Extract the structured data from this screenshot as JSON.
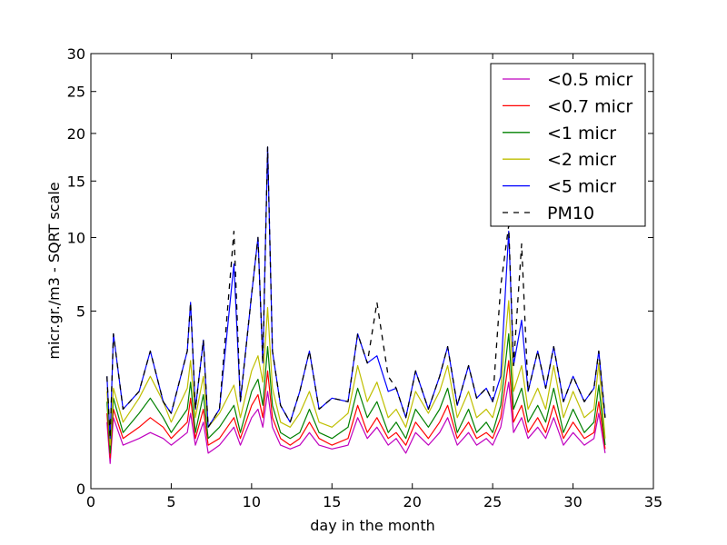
{
  "chart_data": {
    "type": "line",
    "title": "",
    "xlabel": "day in the month",
    "ylabel": "micr.gr./m3 - SQRT scale",
    "xlim": [
      0,
      35
    ],
    "ylim": [
      0,
      30
    ],
    "y_scale": "sqrt",
    "x_ticks": [
      0,
      5,
      10,
      15,
      20,
      25,
      30,
      35
    ],
    "y_ticks": [
      0,
      5,
      10,
      15,
      20,
      25,
      30
    ],
    "grid": false,
    "legend": {
      "position": "top-right"
    },
    "series": [
      {
        "name": "<0.5 micr",
        "color": "#bf00bf",
        "style": "solid",
        "x": [
          1,
          1.2,
          1.4,
          2,
          3,
          3.7,
          4.5,
          5,
          6,
          6.2,
          6.5,
          7,
          7.3,
          8,
          8.9,
          9.3,
          10,
          10.4,
          10.7,
          11,
          11.3,
          11.8,
          12.4,
          13,
          13.6,
          14.2,
          15,
          16,
          16.6,
          17.2,
          17.8,
          18.5,
          19,
          19.6,
          20.2,
          21,
          21.7,
          22.2,
          22.8,
          23.5,
          24,
          24.6,
          25,
          25.5,
          26,
          26.3,
          26.8,
          27.2,
          27.8,
          28.3,
          28.8,
          29.4,
          30,
          30.7,
          31.3,
          31.6,
          32
        ],
        "y": [
          0.7,
          0.1,
          0.8,
          0.3,
          0.4,
          0.5,
          0.4,
          0.3,
          0.5,
          0.9,
          0.3,
          0.7,
          0.2,
          0.3,
          0.6,
          0.3,
          0.8,
          1.0,
          0.6,
          1.5,
          0.6,
          0.3,
          0.25,
          0.3,
          0.5,
          0.3,
          0.25,
          0.3,
          0.8,
          0.4,
          0.6,
          0.3,
          0.4,
          0.2,
          0.5,
          0.3,
          0.5,
          0.8,
          0.3,
          0.5,
          0.3,
          0.4,
          0.3,
          0.6,
          1.8,
          0.5,
          0.8,
          0.4,
          0.6,
          0.4,
          0.8,
          0.3,
          0.5,
          0.3,
          0.4,
          0.9,
          0.2
        ]
      },
      {
        "name": "<0.7 micr",
        "color": "#ff0000",
        "style": "solid",
        "x": [
          1,
          1.2,
          1.4,
          2,
          3,
          3.7,
          4.5,
          5,
          6,
          6.2,
          6.5,
          7,
          7.3,
          8,
          8.9,
          9.3,
          10,
          10.4,
          10.7,
          11,
          11.3,
          11.8,
          12.4,
          13,
          13.6,
          14.2,
          15,
          16,
          16.6,
          17.2,
          17.8,
          18.5,
          19,
          19.6,
          20.2,
          21,
          21.7,
          22.2,
          22.8,
          23.5,
          24,
          24.6,
          25,
          25.5,
          26,
          26.3,
          26.8,
          27.2,
          27.8,
          28.3,
          28.8,
          29.4,
          30,
          30.7,
          31.3,
          31.6,
          32
        ],
        "y": [
          0.9,
          0.15,
          1.0,
          0.4,
          0.6,
          0.8,
          0.6,
          0.4,
          0.7,
          1.3,
          0.4,
          1.0,
          0.3,
          0.4,
          0.8,
          0.4,
          1.1,
          1.4,
          0.8,
          2.2,
          0.8,
          0.4,
          0.3,
          0.4,
          0.7,
          0.4,
          0.3,
          0.4,
          1.1,
          0.5,
          0.8,
          0.4,
          0.5,
          0.3,
          0.7,
          0.4,
          0.7,
          1.1,
          0.4,
          0.7,
          0.4,
          0.5,
          0.4,
          0.8,
          2.6,
          0.7,
          1.1,
          0.5,
          0.8,
          0.5,
          1.1,
          0.4,
          0.7,
          0.4,
          0.5,
          1.2,
          0.25
        ]
      },
      {
        "name": "<1 micr",
        "color": "#008000",
        "style": "solid",
        "x": [
          1,
          1.2,
          1.4,
          2,
          3,
          3.7,
          4.5,
          5,
          6,
          6.2,
          6.5,
          7,
          7.3,
          8,
          8.9,
          9.3,
          10,
          10.4,
          10.7,
          11,
          11.3,
          11.8,
          12.4,
          13,
          13.6,
          14.2,
          15,
          16,
          16.6,
          17.2,
          17.8,
          18.5,
          19,
          19.6,
          20.2,
          21,
          21.7,
          22.2,
          22.8,
          23.5,
          24,
          24.6,
          25,
          25.5,
          26,
          26.3,
          26.8,
          27.2,
          27.8,
          28.3,
          28.8,
          29.4,
          30,
          30.7,
          31.3,
          31.6,
          32
        ],
        "y": [
          1.2,
          0.2,
          1.3,
          0.5,
          0.9,
          1.3,
          0.8,
          0.5,
          1.0,
          1.8,
          0.5,
          1.4,
          0.4,
          0.6,
          1.1,
          0.5,
          1.5,
          1.9,
          1.1,
          3.2,
          1.1,
          0.5,
          0.4,
          0.5,
          1.0,
          0.5,
          0.4,
          0.6,
          1.6,
          0.8,
          1.2,
          0.5,
          0.7,
          0.4,
          1.0,
          0.6,
          1.0,
          1.6,
          0.5,
          1.0,
          0.5,
          0.7,
          0.5,
          1.1,
          3.8,
          1.0,
          1.6,
          0.7,
          1.1,
          0.7,
          1.6,
          0.5,
          1.0,
          0.5,
          0.7,
          1.7,
          0.3
        ]
      },
      {
        "name": "<2 micr",
        "color": "#bfbf00",
        "style": "solid",
        "x": [
          1,
          1.2,
          1.4,
          2,
          3,
          3.7,
          4.5,
          5,
          6,
          6.2,
          6.5,
          7,
          7.3,
          8,
          8.9,
          9.3,
          10,
          10.4,
          10.7,
          11,
          11.3,
          11.8,
          12.4,
          13,
          13.6,
          14.2,
          15,
          16,
          16.6,
          17.2,
          17.8,
          18.5,
          19,
          19.6,
          20.2,
          21,
          21.7,
          22.2,
          22.8,
          23.5,
          24,
          24.6,
          25,
          25.5,
          26,
          26.3,
          26.8,
          27.2,
          27.8,
          28.3,
          28.8,
          29.4,
          30,
          30.7,
          31.3,
          31.6,
          32
        ],
        "y": [
          1.5,
          0.3,
          1.6,
          0.7,
          1.3,
          2.0,
          1.2,
          0.7,
          1.6,
          2.6,
          0.8,
          2.0,
          0.6,
          0.9,
          1.7,
          0.8,
          2.2,
          2.8,
          1.8,
          5.2,
          1.6,
          0.7,
          0.6,
          0.9,
          1.5,
          0.7,
          0.6,
          0.9,
          2.4,
          1.2,
          1.8,
          0.8,
          1.0,
          0.6,
          1.5,
          0.9,
          1.5,
          2.4,
          0.8,
          1.5,
          0.8,
          1.0,
          0.8,
          1.6,
          5.6,
          1.5,
          2.4,
          1.0,
          1.6,
          1.0,
          2.4,
          0.8,
          1.5,
          0.8,
          1.0,
          2.5,
          0.4
        ]
      },
      {
        "name": "<5 micr",
        "color": "#0000ff",
        "style": "solid",
        "x": [
          1,
          1.2,
          1.4,
          2,
          3,
          3.7,
          4.5,
          5,
          6,
          6.2,
          6.5,
          7,
          7.3,
          8,
          8.9,
          9.3,
          10,
          10.4,
          10.7,
          11,
          11.3,
          11.8,
          12.4,
          13,
          13.6,
          14.2,
          15,
          16,
          16.6,
          17.2,
          17.8,
          18.5,
          19,
          19.6,
          20.2,
          21,
          21.7,
          22.2,
          22.8,
          23.5,
          24,
          24.6,
          25,
          25.5,
          26,
          26.3,
          26.8,
          27.2,
          27.8,
          28.3,
          28.8,
          29.4,
          30,
          30.7,
          31.3,
          31.6,
          32
        ],
        "y": [
          2.0,
          0.4,
          3.8,
          1.0,
          1.5,
          3.0,
          1.2,
          0.9,
          3.0,
          5.5,
          1.0,
          3.5,
          0.6,
          1.0,
          8.0,
          1.2,
          6.0,
          10.0,
          2.5,
          18.5,
          3.0,
          1.1,
          0.7,
          1.5,
          3.0,
          1.0,
          1.3,
          1.2,
          3.8,
          2.5,
          2.8,
          1.5,
          1.6,
          0.8,
          2.2,
          1.0,
          2.0,
          3.2,
          1.1,
          2.4,
          1.3,
          1.6,
          1.2,
          2.0,
          10.5,
          2.4,
          4.5,
          1.5,
          3.0,
          1.6,
          3.2,
          1.2,
          2.0,
          1.2,
          1.6,
          3.0,
          0.8
        ]
      },
      {
        "name": "PM10",
        "color": "#000000",
        "style": "dashed",
        "x": [
          1,
          1.2,
          1.4,
          2,
          3,
          3.7,
          4.5,
          5,
          6,
          6.2,
          6.5,
          7,
          7.3,
          8,
          8.9,
          9.3,
          10,
          10.4,
          10.7,
          11,
          11.3,
          11.8,
          12.4,
          13,
          13.6,
          14.2,
          15,
          16,
          16.6,
          17.2,
          17.8,
          18.5,
          19,
          19.6,
          20.2,
          21,
          21.7,
          22.2,
          22.8,
          23.5,
          24,
          24.6,
          25,
          25.5,
          26,
          26.3,
          26.8,
          27.2,
          27.8,
          28.3,
          28.8,
          29.4,
          30,
          30.7,
          31.3,
          31.6,
          32
        ],
        "y": [
          2.0,
          0.4,
          3.8,
          1.0,
          1.5,
          3.0,
          1.2,
          0.9,
          3.0,
          5.5,
          1.0,
          3.5,
          0.6,
          1.0,
          10.5,
          1.2,
          6.0,
          10.0,
          2.5,
          18.5,
          3.0,
          1.1,
          0.7,
          1.5,
          3.0,
          1.0,
          1.3,
          1.2,
          3.8,
          2.5,
          5.5,
          2.0,
          1.6,
          0.8,
          2.2,
          1.0,
          2.0,
          3.2,
          1.1,
          2.4,
          1.3,
          1.6,
          1.2,
          6.5,
          11.0,
          2.4,
          9.5,
          1.5,
          3.0,
          1.6,
          3.2,
          1.2,
          2.0,
          1.2,
          1.6,
          3.0,
          0.8
        ]
      }
    ]
  }
}
